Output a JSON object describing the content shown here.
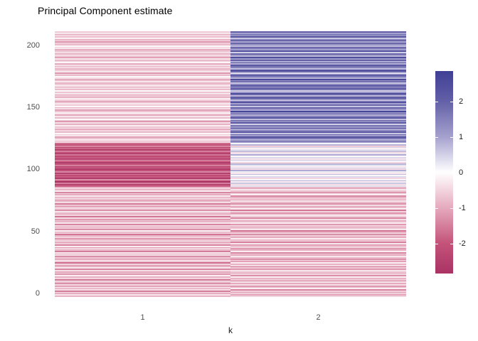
{
  "title": "Principal Component estimate",
  "x_axis": {
    "label": "k"
  },
  "chart_data": {
    "type": "heatmap",
    "title": "Principal Component estimate",
    "xlabel": "k",
    "ylabel": "",
    "categories_x": [
      "1",
      "2"
    ],
    "row_count": 207,
    "row_order": "bottom_to_top",
    "y_ticks": [
      0,
      50,
      100,
      150,
      200
    ],
    "colorbar": {
      "min": -2.85,
      "max": 2.85,
      "ticks": [
        2,
        1,
        0,
        -1,
        -2
      ],
      "position": "right"
    },
    "gradient_stops": [
      {
        "v": -2.85,
        "hex": "#A93365"
      },
      {
        "v": -2.0,
        "hex": "#C45379"
      },
      {
        "v": -1.0,
        "hex": "#E5AABE"
      },
      {
        "v": 0.0,
        "hex": "#FFFFFF"
      },
      {
        "v": 1.0,
        "hex": "#A5A1CE"
      },
      {
        "v": 2.0,
        "hex": "#6360A7"
      },
      {
        "v": 2.85,
        "hex": "#3F3F95"
      }
    ],
    "series": [
      {
        "name": "k=1",
        "values": [
          -0.9,
          -0.3,
          -1.2,
          -0.6,
          -1.5,
          -0.4,
          -0.8,
          -0.2,
          -1.1,
          -0.5,
          -1.3,
          -0.7,
          -0.3,
          -1.6,
          -0.5,
          -0.9,
          -0.2,
          -1.2,
          -0.6,
          -1.0,
          -0.4,
          -1.4,
          -0.3,
          -0.8,
          -1.1,
          -0.5,
          -1.7,
          -0.6,
          -0.2,
          -1.0,
          -0.7,
          -1.3,
          -0.4,
          -0.9,
          -0.3,
          -1.5,
          -0.8,
          -0.5,
          -1.1,
          -0.2,
          -1.4,
          -0.6,
          -1.0,
          -0.3,
          -0.7,
          -1.2,
          -0.5,
          -0.9,
          -1.6,
          -0.4,
          -0.8,
          -0.2,
          -1.3,
          -0.6,
          -1.0,
          -0.5,
          -1.4,
          -0.3,
          -0.9,
          -0.7,
          -1.2,
          -0.4,
          -1.6,
          -0.5,
          -1.0,
          -0.8,
          -0.3,
          -1.3,
          -0.6,
          -0.2,
          -1.1,
          -0.7,
          -1.5,
          -0.4,
          -0.9,
          -1.2,
          -0.5,
          -0.8,
          -0.3,
          -1.0,
          -0.6,
          -1.4,
          -0.2,
          -0.9,
          -0.5,
          -1.1,
          -1.8,
          -2.4,
          -1.5,
          -2.8,
          -2.0,
          -1.3,
          -2.6,
          -1.9,
          -2.2,
          -1.6,
          -2.5,
          -1.4,
          -2.1,
          -2.7,
          -1.7,
          -2.3,
          -1.5,
          -2.0,
          -2.6,
          -1.8,
          -1.3,
          -2.4,
          -1.9,
          -2.2,
          -1.6,
          -2.8,
          -2.1,
          -1.5,
          -2.5,
          -1.8,
          -2.3,
          -1.4,
          -2.0,
          -1.7,
          -0.4,
          -0.9,
          -0.2,
          -0.7,
          -1.1,
          -0.3,
          -0.6,
          -0.1,
          -0.8,
          -0.5,
          -1.0,
          -0.3,
          -0.7,
          -0.2,
          -0.9,
          -0.4,
          -1.2,
          -0.6,
          -0.1,
          -0.8,
          -0.3,
          -1.0,
          -0.5,
          -0.2,
          -0.7,
          -1.1,
          -0.4,
          -0.9,
          -0.1,
          -0.6,
          -0.3,
          -0.8,
          -1.2,
          -0.5,
          -0.2,
          -0.9,
          -0.6,
          -1.0,
          -0.3,
          -0.7,
          -0.1,
          -0.8,
          -0.4,
          -1.1,
          -0.2,
          -0.6,
          -0.9,
          -0.3,
          -0.7,
          -1.0,
          -0.4,
          -0.1,
          -0.8,
          -0.5,
          -1.2,
          -0.3,
          -0.6,
          -0.9,
          -0.2,
          -0.7,
          -0.4,
          -1.0,
          -0.1,
          -0.5,
          -0.8,
          -0.3,
          -1.1,
          -0.6,
          -0.2,
          -0.9,
          -0.4,
          -0.7,
          -1.0,
          -0.3,
          -0.5,
          -0.1,
          -0.8,
          -0.6,
          -1.2,
          -0.4,
          -0.9,
          -0.2,
          -0.7,
          -0.5,
          -1.0,
          -0.3,
          -0.6
        ]
      },
      {
        "name": "k=2",
        "values": [
          -0.5,
          -1.1,
          -0.3,
          -0.9,
          -0.6,
          -1.4,
          -0.2,
          -0.8,
          -1.2,
          -0.4,
          -1.0,
          -0.3,
          -1.5,
          -0.6,
          -0.9,
          -0.2,
          -1.3,
          -0.5,
          -1.0,
          -0.7,
          -0.3,
          -1.2,
          -0.6,
          -1.6,
          -0.4,
          -0.9,
          -0.2,
          -1.1,
          -0.5,
          -1.3,
          -0.8,
          -0.3,
          -1.0,
          -0.6,
          -1.4,
          -0.2,
          -0.9,
          -1.2,
          -0.4,
          -0.7,
          -1.1,
          -0.3,
          -1.5,
          -0.5,
          -0.8,
          -0.2,
          -1.0,
          -0.6,
          -1.3,
          -0.4,
          -0.9,
          -1.6,
          -0.3,
          -0.7,
          -1.1,
          -0.5,
          -1.2,
          -0.2,
          -0.8,
          -1.0,
          -0.4,
          -1.4,
          -0.6,
          -0.3,
          -0.9,
          -1.2,
          -0.5,
          -1.6,
          -0.2,
          -0.7,
          -1.0,
          -0.4,
          -1.3,
          -0.8,
          -0.3,
          -1.1,
          -0.6,
          -0.9,
          -1.4,
          -0.2,
          -0.5,
          -1.2,
          -0.7,
          -0.3,
          -1.0,
          -0.8,
          0.3,
          -0.4,
          0.6,
          -0.2,
          0.8,
          0.1,
          -0.5,
          0.4,
          -0.1,
          0.7,
          -0.3,
          0.2,
          0.9,
          -0.4,
          0.5,
          -0.2,
          0.3,
          0.8,
          -0.5,
          0.1,
          0.6,
          -0.3,
          0.4,
          -0.1,
          0.9,
          0.2,
          -0.4,
          0.7,
          0.3,
          -0.2,
          0.5,
          -0.6,
          0.8,
          0.1,
          1.2,
          2.0,
          0.8,
          1.6,
          2.4,
          1.0,
          1.8,
          0.6,
          2.2,
          1.4,
          0.9,
          2.6,
          1.1,
          1.7,
          0.5,
          2.1,
          1.3,
          1.9,
          0.7,
          2.3,
          1.5,
          0.8,
          2.0,
          1.2,
          2.7,
          0.9,
          1.6,
          2.2,
          0.6,
          1.8,
          1.0,
          2.4,
          1.3,
          0.7,
          1.9,
          2.1,
          0.8,
          1.5,
          2.5,
          1.1,
          0.5,
          1.7,
          2.0,
          0.9,
          2.3,
          1.4,
          0.6,
          1.8,
          1.2,
          2.6,
          0.8,
          1.6,
          2.1,
          1.0,
          0.4,
          1.9,
          2.4,
          0.7,
          1.3,
          1.7,
          2.2,
          0.9,
          1.5,
          0.6,
          2.0,
          1.1,
          2.5,
          0.8,
          1.4,
          1.8,
          0.5,
          2.3,
          1.0,
          1.6,
          2.1,
          0.7,
          1.2,
          1.9,
          0.9,
          2.6,
          1.5,
          0.6,
          2.2,
          1.3,
          1.7,
          1.0,
          2.0
        ]
      }
    ]
  }
}
